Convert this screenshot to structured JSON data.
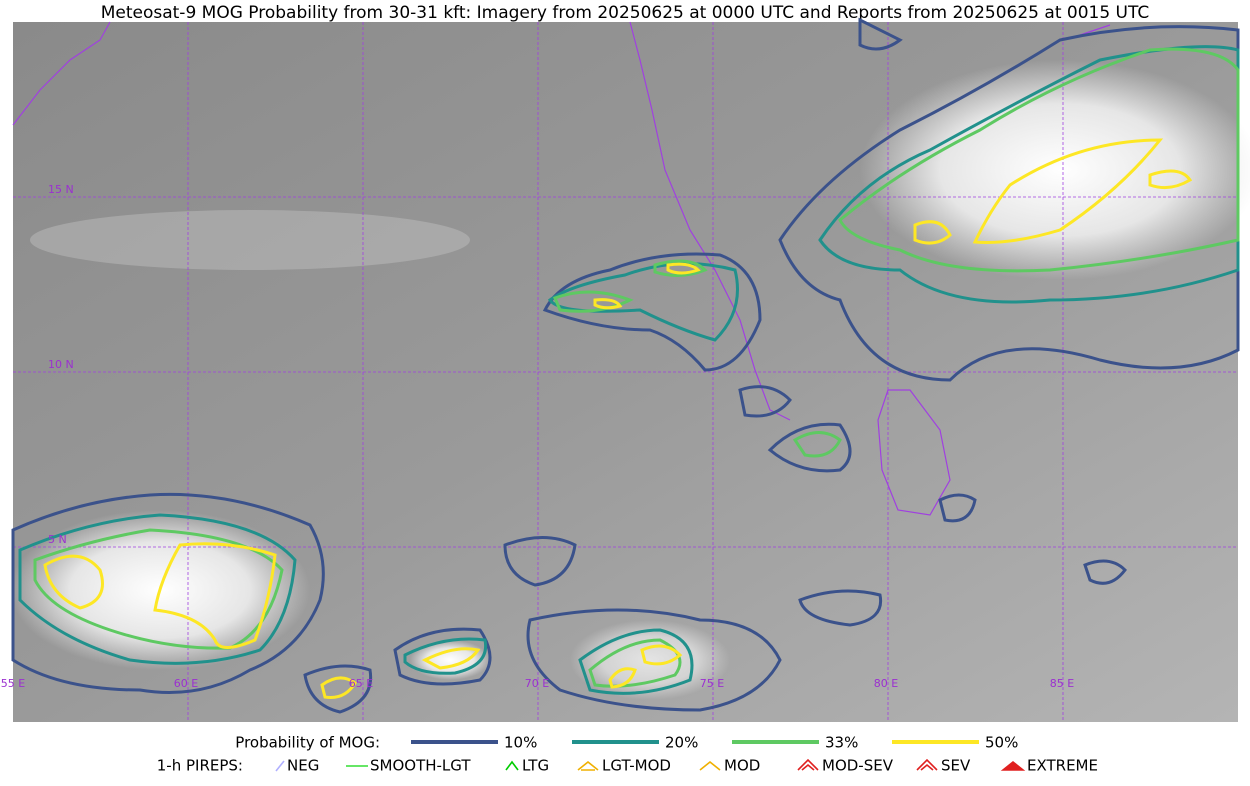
{
  "title": "Meteosat-9 MOG Probability from 30-31 kft: Imagery from 20250625 at 0000 UTC and Reports from 20250625 at 0015 UTC",
  "map": {
    "lat_labels": [
      "15 N",
      "10 N",
      "5 N"
    ],
    "lon_labels": [
      "55 E",
      "60 E",
      "65 E",
      "70 E",
      "75 E",
      "80 E",
      "85 E"
    ]
  },
  "legend": {
    "probability": {
      "title": "Probability of MOG:",
      "items": [
        {
          "label": "10%",
          "color": "#3b528b"
        },
        {
          "label": "20%",
          "color": "#21918c"
        },
        {
          "label": "33%",
          "color": "#5ec962"
        },
        {
          "label": "50%",
          "color": "#fde725"
        }
      ]
    },
    "pireps": {
      "title": "1-h PIREPS:",
      "items": [
        {
          "label": "NEG",
          "color": "#b0b0ff"
        },
        {
          "label": "SMOOTH-LGT",
          "color": "#33dd33"
        },
        {
          "label": "LTG",
          "color": "#00cc00"
        },
        {
          "label": "LGT-MOD",
          "color": "#f0b000"
        },
        {
          "label": "MOD",
          "color": "#f0b000"
        },
        {
          "label": "MOD-SEV",
          "color": "#e02020"
        },
        {
          "label": "SEV",
          "color": "#e02020"
        },
        {
          "label": "EXTREME",
          "color": "#e02020"
        }
      ]
    }
  }
}
